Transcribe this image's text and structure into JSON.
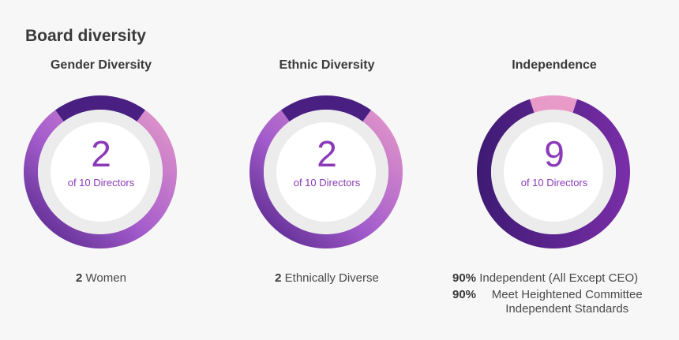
{
  "title": "Board diversity",
  "panels": [
    {
      "title": "Gender Diversity",
      "number": "2",
      "sub": "of 10 Directors",
      "caption_num": "2",
      "caption_text": "Women"
    },
    {
      "title": "Ethnic Diversity",
      "number": "2",
      "sub": "of 10 Directors",
      "caption_num": "2",
      "caption_text": "Ethnically Diverse"
    },
    {
      "title": "Independence",
      "number": "9",
      "sub": "of 10 Directors",
      "lines": [
        {
          "num": "90%",
          "text": "Independent (All Except CEO)"
        },
        {
          "num": "90%",
          "text": "Meet Heightened Committee Independent Standards"
        }
      ]
    }
  ],
  "chart_data": [
    {
      "type": "pie",
      "title": "Gender Diversity",
      "values": [
        2,
        8
      ],
      "total": 10,
      "colors": [
        "#4a1f82",
        "#a45ccc",
        "#e89bc9"
      ]
    },
    {
      "type": "pie",
      "title": "Ethnic Diversity",
      "values": [
        2,
        8
      ],
      "total": 10,
      "colors": [
        "#4a1f82",
        "#a45ccc",
        "#e89bc9"
      ]
    },
    {
      "type": "pie",
      "title": "Independence",
      "values": [
        9,
        1
      ],
      "total": 10,
      "colors": [
        "#3d1a73",
        "#7a2ea8",
        "#e89bc9"
      ]
    }
  ]
}
